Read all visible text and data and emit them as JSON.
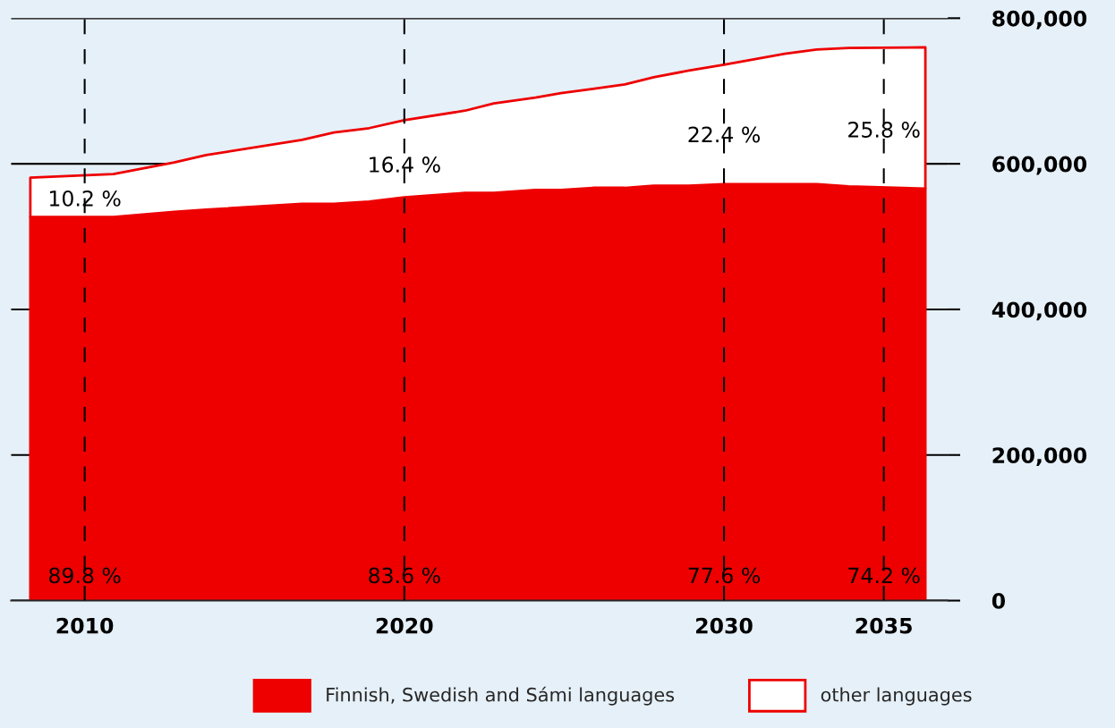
{
  "chart_data": {
    "type": "area",
    "stacked": true,
    "x": [
      2008.3,
      2010.9,
      2012.8,
      2013.8,
      2016.8,
      2017.8,
      2018.9,
      2020,
      2021.9,
      2022.8,
      2024.1,
      2024.9,
      2025.9,
      2026.9,
      2027.8,
      2028.9,
      2030,
      2031.9,
      2032.9,
      2033.9,
      2036.3
    ],
    "series": [
      {
        "name": "Finnish, Swedish and Sámi languages",
        "color": "#ee0000",
        "values": [
          527000,
          527000,
          534000,
          537000,
          545000,
          545000,
          548000,
          554000,
          560000,
          560000,
          564000,
          564000,
          567000,
          567000,
          570000,
          570000,
          572000,
          572000,
          572000,
          569000,
          566000
        ]
      },
      {
        "name": "other languages",
        "color": "#ffffff",
        "values": [
          54000,
          59000,
          68000,
          75000,
          88000,
          98000,
          101000,
          106000,
          113000,
          123000,
          127000,
          133000,
          136000,
          142000,
          149000,
          158000,
          164000,
          179000,
          185000,
          190000,
          194000
        ]
      }
    ],
    "xlim": [
      2007.7,
      2037
    ],
    "xticks": [
      2010,
      2020,
      2030,
      2035
    ],
    "ylim": [
      0,
      800000
    ],
    "yticks": [
      {
        "value": 0,
        "label": "0"
      },
      {
        "value": 200000,
        "label": "200,000"
      },
      {
        "value": 400000,
        "label": "400,000"
      },
      {
        "value": 600000,
        "label": "600,000"
      },
      {
        "value": 800000,
        "label": "800,000"
      }
    ],
    "grid": true,
    "legend": "bottom",
    "annotations": [
      "10.2 %",
      "16.4 %",
      "22.4 %",
      "25.8 %",
      "89.8 %",
      "83.6 %",
      "77.6 %",
      "74.2 %"
    ]
  }
}
